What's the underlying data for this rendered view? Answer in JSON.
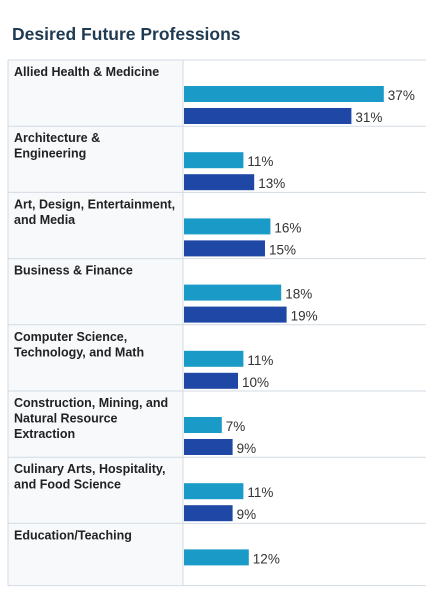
{
  "chart_data": {
    "type": "bar",
    "orientation": "horizontal",
    "title": "Desired Future Professions",
    "categories": [
      [
        "Allied Health & Medicine"
      ],
      [
        "Architecture &",
        "Engineering"
      ],
      [
        "Art, Design, Entertainment,",
        "and Media"
      ],
      [
        "Business & Finance"
      ],
      [
        "Computer Science,",
        "Technology, and Math"
      ],
      [
        "Construction, Mining, and",
        "Natural Resource",
        "Extraction"
      ],
      [
        "Culinary Arts, Hospitality,",
        "and Food Science"
      ],
      [
        "Education/Teaching"
      ]
    ],
    "series": [
      {
        "values": [
          37,
          11,
          16,
          18,
          11,
          7,
          11,
          12
        ],
        "color": "#1a9bc7"
      },
      {
        "values": [
          31,
          13,
          15,
          19,
          10,
          9,
          9,
          null
        ],
        "color": "#1f47a6"
      }
    ],
    "value_suffix": "%",
    "grid": false,
    "legend": "none"
  },
  "colors": {
    "title": "#1f3a52",
    "row_border": "#d3dbe3",
    "label_bg": "#f7f9fb"
  }
}
